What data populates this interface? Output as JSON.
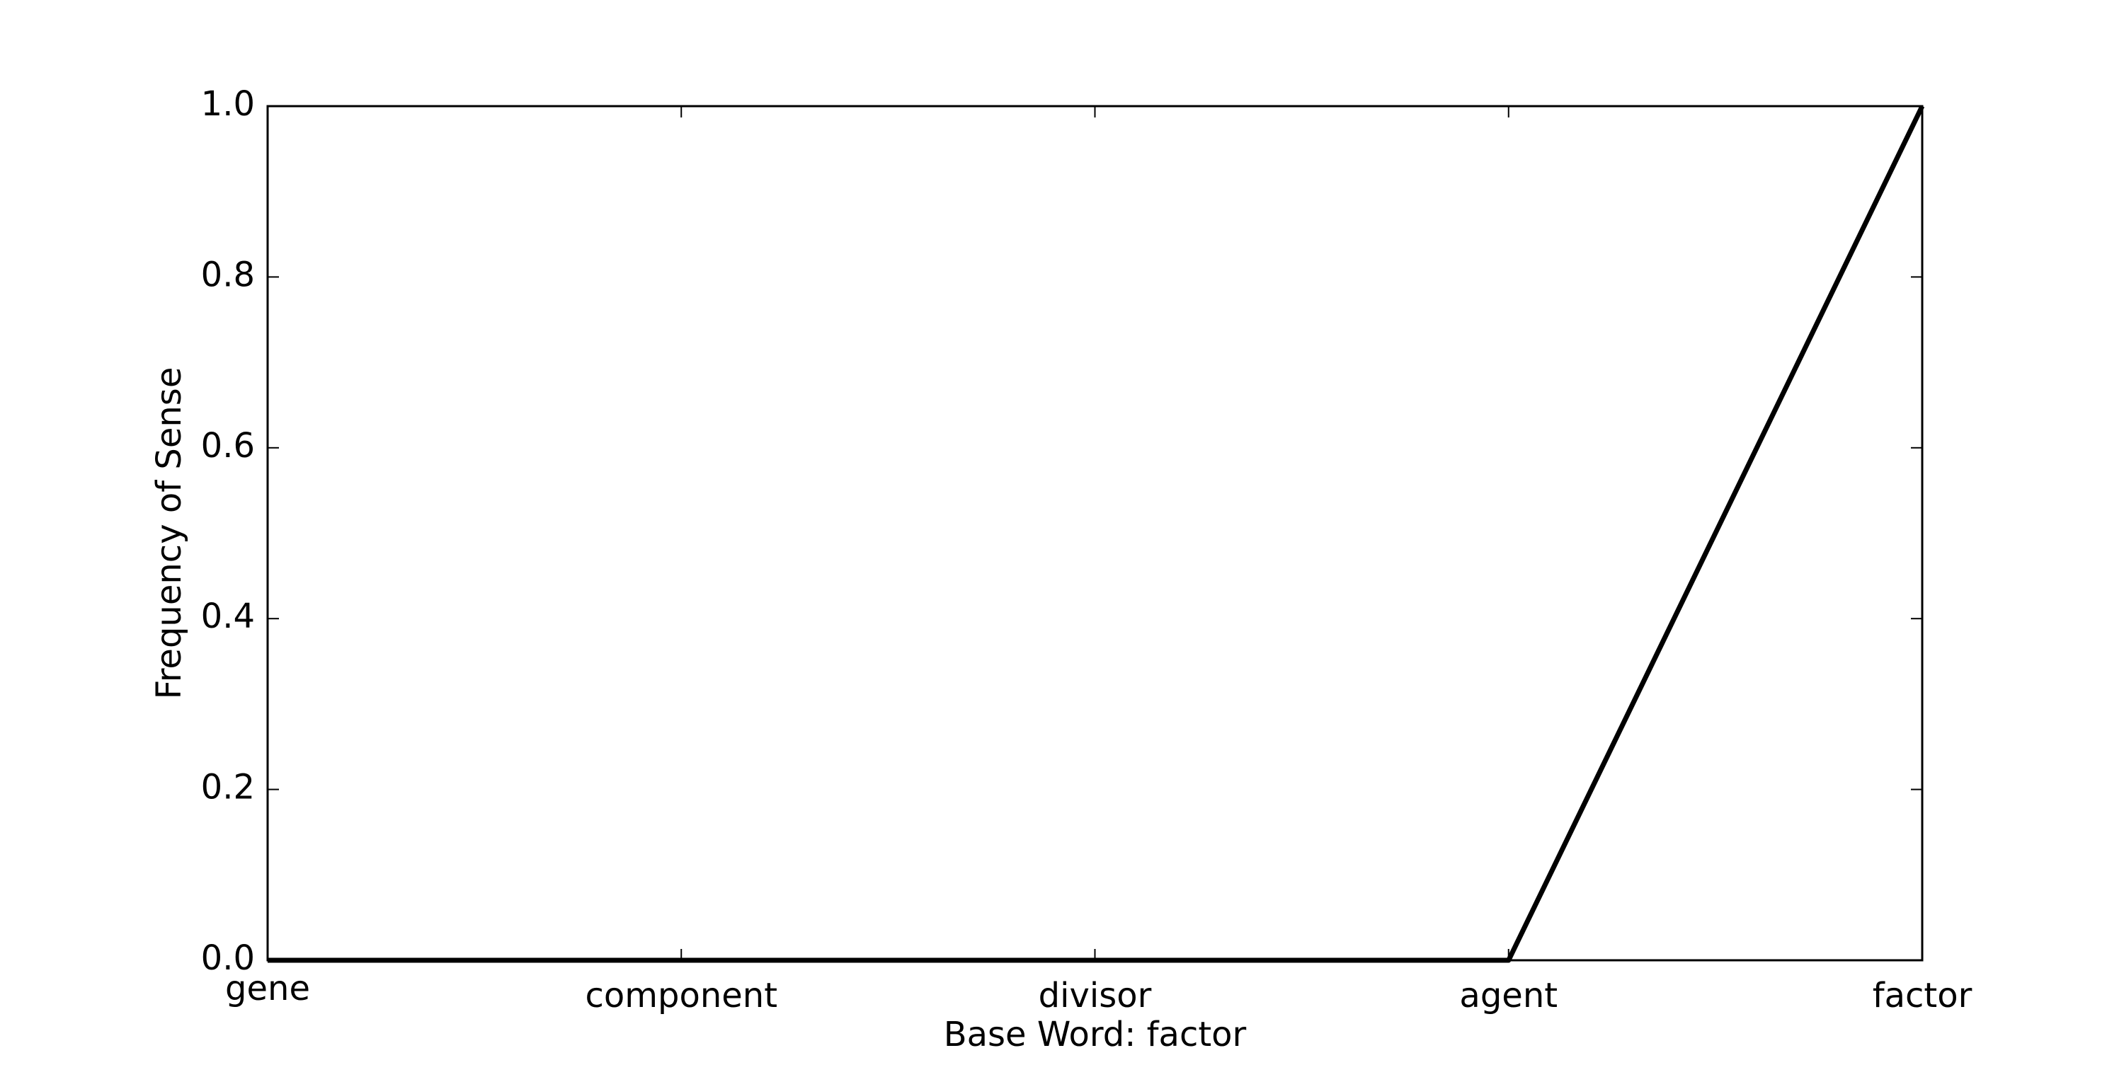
{
  "chart_data": {
    "type": "line",
    "categories": [
      "gene",
      "component",
      "divisor",
      "agent",
      "factor"
    ],
    "series": [
      {
        "values": [
          0.0,
          0.0,
          0.0,
          0.0,
          1.0
        ]
      }
    ],
    "xlabel": "Base Word: factor",
    "ylabel": "Frequency of Sense",
    "ylim": [
      0.0,
      1.0
    ],
    "yticks": [
      "0.0",
      "0.2",
      "0.4",
      "0.6",
      "0.8",
      "1.0"
    ],
    "grid": false,
    "line_color": "#000000"
  }
}
